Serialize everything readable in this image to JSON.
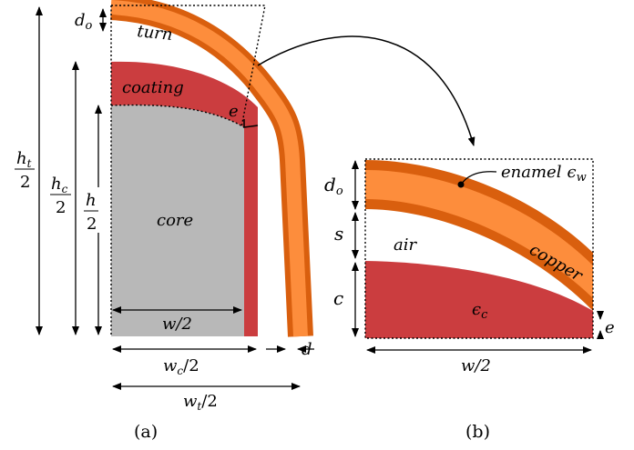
{
  "colors": {
    "turn_outer": "#d95f0e",
    "turn_inner": "#fd8d3c",
    "coating": "#cb3d3f",
    "core": "#b8b8b8",
    "line": "#000000"
  },
  "panel_a": {
    "caption": "(a)",
    "labels": {
      "turn": "turn",
      "coating": "coating",
      "core": "core",
      "e": "e",
      "d": "d",
      "d_o": "d",
      "d_o_sub": "o"
    },
    "dimensions": {
      "ht_num": "h",
      "ht_sub": "t",
      "ht_den": "2",
      "hc_num": "h",
      "hc_sub": "c",
      "hc_den": "2",
      "h_num": "h",
      "h_den": "2",
      "w_half": "w/2",
      "wc_w": "w",
      "wc_sub": "c",
      "wc_rest": "/2",
      "wt_w": "w",
      "wt_sub": "t",
      "wt_rest": "/2"
    }
  },
  "panel_b": {
    "caption": "(b)",
    "labels": {
      "enamel": "enamel",
      "eps_w": "ϵ",
      "eps_w_sub": "w",
      "copper": "copper",
      "air": "air",
      "eps_c": "ϵ",
      "eps_c_sub": "c",
      "d_o": "d",
      "d_o_sub": "o",
      "s": "s",
      "c": "c",
      "e": "e",
      "w_half": "w/2"
    }
  }
}
